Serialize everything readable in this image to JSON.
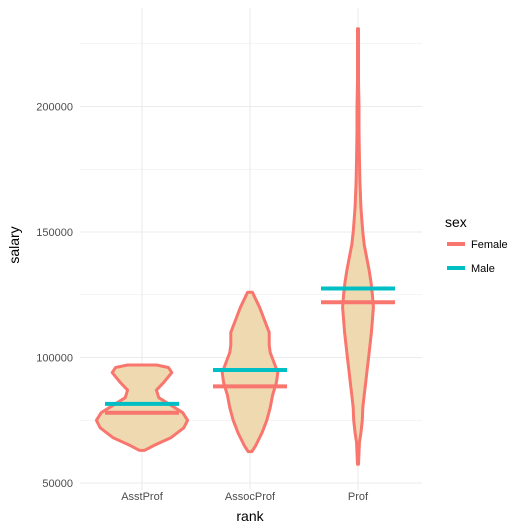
{
  "chart_data": {
    "type": "violin",
    "xlabel": "rank",
    "ylabel": "salary",
    "categories": [
      "AsstProf",
      "AssocProf",
      "Prof"
    ],
    "ylim": [
      48000,
      236000
    ],
    "yticks": [
      50000,
      100000,
      150000,
      200000
    ],
    "grid": true,
    "legend": {
      "title": "sex",
      "position": "right",
      "entries": [
        {
          "label": "Female",
          "color": "#f8766d"
        },
        {
          "label": "Male",
          "color": "#00bfc4"
        }
      ]
    },
    "colors": {
      "violin_fill": "#efd9b1",
      "violin_outline": "#f8766d",
      "female": "#f8766d",
      "male": "#00bfc4",
      "grid": "#ebebeb"
    },
    "violins": [
      {
        "category": "AsstProf",
        "profile": [
          [
            63000,
            0.05
          ],
          [
            65000,
            0.25
          ],
          [
            68000,
            0.6
          ],
          [
            72000,
            0.87
          ],
          [
            75000,
            0.95
          ],
          [
            78000,
            0.85
          ],
          [
            81000,
            0.6
          ],
          [
            84000,
            0.35
          ],
          [
            87000,
            0.3
          ],
          [
            90000,
            0.45
          ],
          [
            94000,
            0.62
          ],
          [
            96000,
            0.55
          ],
          [
            97000,
            0.3
          ]
        ]
      },
      {
        "category": "AssocProf",
        "profile": [
          [
            62500,
            0.04
          ],
          [
            65000,
            0.12
          ],
          [
            70000,
            0.25
          ],
          [
            75000,
            0.35
          ],
          [
            80000,
            0.42
          ],
          [
            85000,
            0.47
          ],
          [
            90000,
            0.55
          ],
          [
            94000,
            0.58
          ],
          [
            98000,
            0.5
          ],
          [
            102000,
            0.42
          ],
          [
            105000,
            0.4
          ],
          [
            110000,
            0.4
          ],
          [
            115000,
            0.3
          ],
          [
            120000,
            0.2
          ],
          [
            124000,
            0.1
          ],
          [
            126000,
            0.05
          ]
        ]
      },
      {
        "category": "Prof",
        "profile": [
          [
            57500,
            0.01
          ],
          [
            62000,
            0.02
          ],
          [
            66000,
            0.03
          ],
          [
            70000,
            0.06
          ],
          [
            75000,
            0.09
          ],
          [
            80000,
            0.1
          ],
          [
            85000,
            0.13
          ],
          [
            90000,
            0.16
          ],
          [
            95000,
            0.19
          ],
          [
            100000,
            0.22
          ],
          [
            105000,
            0.25
          ],
          [
            110000,
            0.28
          ],
          [
            115000,
            0.3
          ],
          [
            120000,
            0.32
          ],
          [
            125000,
            0.3
          ],
          [
            130000,
            0.27
          ],
          [
            135000,
            0.23
          ],
          [
            140000,
            0.18
          ],
          [
            145000,
            0.13
          ],
          [
            150000,
            0.1
          ],
          [
            155000,
            0.08
          ],
          [
            160000,
            0.06
          ],
          [
            165000,
            0.05
          ],
          [
            170000,
            0.04
          ],
          [
            180000,
            0.03
          ],
          [
            190000,
            0.02
          ],
          [
            200000,
            0.02
          ],
          [
            210000,
            0.01
          ],
          [
            231000,
            0.01
          ]
        ]
      }
    ],
    "series": [
      {
        "name": "Female",
        "values": [
          78000,
          88500,
          122000
        ]
      },
      {
        "name": "Male",
        "values": [
          81500,
          95000,
          127500
        ]
      }
    ]
  }
}
